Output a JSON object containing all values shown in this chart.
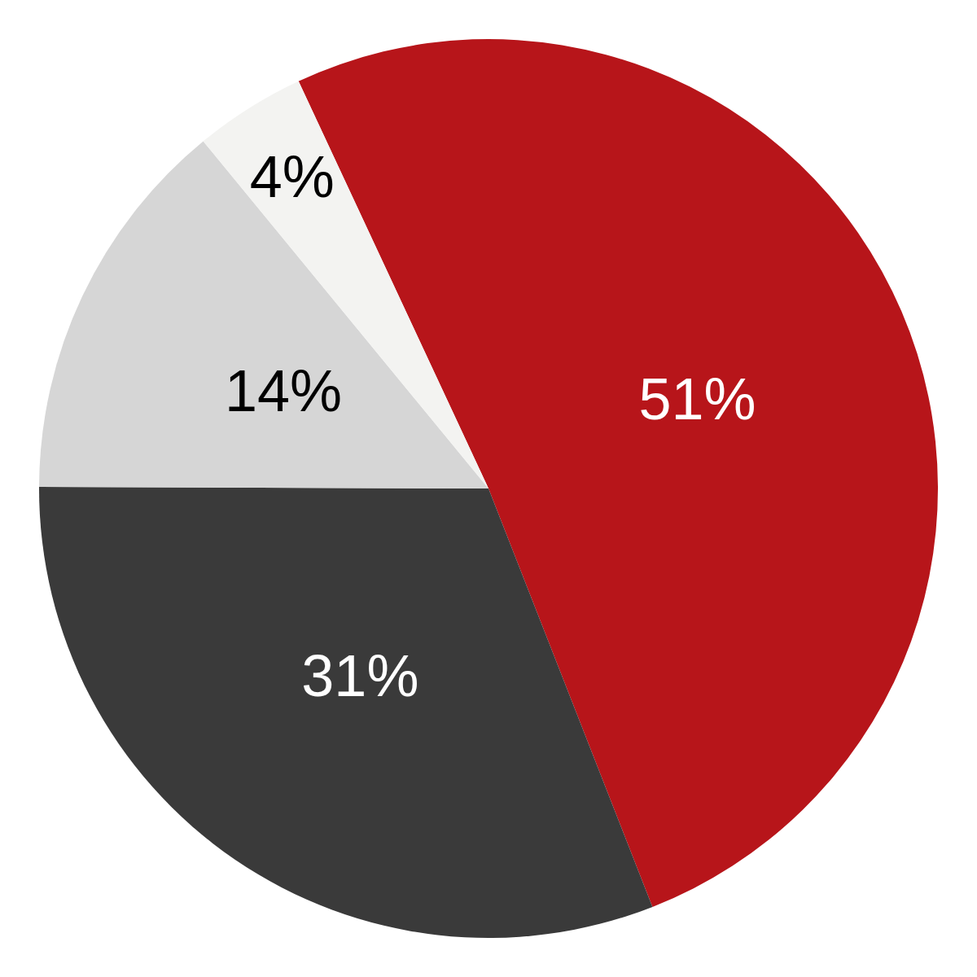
{
  "chart_data": {
    "type": "pie",
    "categories": [
      null,
      null,
      null,
      null
    ],
    "values": [
      51,
      31,
      14,
      4
    ],
    "colors": [
      "#b7151a",
      "#3a3a3a",
      "#d6d6d6",
      "#f3f3f1"
    ],
    "value_labels": [
      "51%",
      "31%",
      "14%",
      "4%"
    ]
  }
}
